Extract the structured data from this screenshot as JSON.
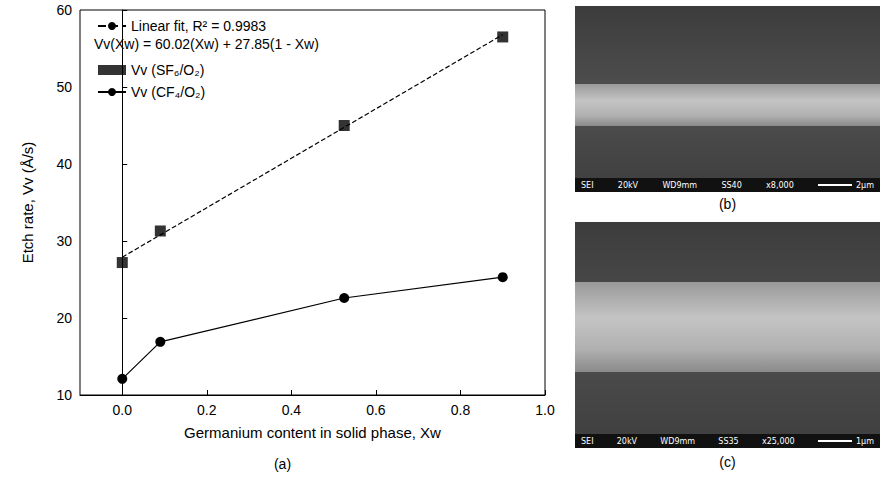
{
  "chart_data": {
    "type": "scatter",
    "x_label": "Germanium content in solid phase, Xw",
    "y_label": "Etch rate, Vv (Å/s)",
    "annotation": "Vv(Xw) = 60.02(Xw) + 27.85(1 - Xw)",
    "caption": "(a)",
    "series": [
      {
        "name": "Linear fit, R² = 0.9983",
        "type": "line",
        "line_style": "dashed",
        "marker": "none",
        "color": "#000000",
        "x": [
          0,
          0.9
        ],
        "values": [
          27.9,
          56.8
        ]
      },
      {
        "name": "Vv (SF₆/O₂)",
        "type": "scatter",
        "marker": "square",
        "color": "#000000",
        "x": [
          0,
          0.09,
          0.525,
          0.9
        ],
        "values": [
          27.2,
          31.3,
          45.0,
          56.5
        ]
      },
      {
        "name": "Vv (CF₄/O₂)",
        "type": "line",
        "line_style": "solid",
        "marker": "circle",
        "color": "#000000",
        "x": [
          0,
          0.09,
          0.525,
          0.9
        ],
        "values": [
          12.1,
          16.9,
          22.6,
          25.3
        ]
      }
    ],
    "xlim": [
      -0.1,
      1.0
    ],
    "xticks": [
      {
        "value": 0,
        "label": "0.0"
      },
      {
        "value": 0.2,
        "label": "0.2"
      },
      {
        "value": 0.4,
        "label": "0.4"
      },
      {
        "value": 0.6,
        "label": "0.6"
      },
      {
        "value": 0.8,
        "label": "0.8"
      },
      {
        "value": 1.0,
        "label": "1.0"
      }
    ],
    "ylim": [
      10,
      60
    ],
    "yticks": [
      10,
      20,
      30,
      40,
      50,
      60
    ],
    "grid": false,
    "legend": "upper left"
  },
  "panels": [
    {
      "label": "(b)",
      "info": [
        "SEI",
        "20kV",
        "WD9mm",
        "SS40",
        "x8,000",
        "2µm"
      ]
    },
    {
      "label": "(c)",
      "info": [
        "SEI",
        "20kV",
        "WD9mm",
        "SS35",
        "x25,000",
        "1µm"
      ]
    }
  ]
}
